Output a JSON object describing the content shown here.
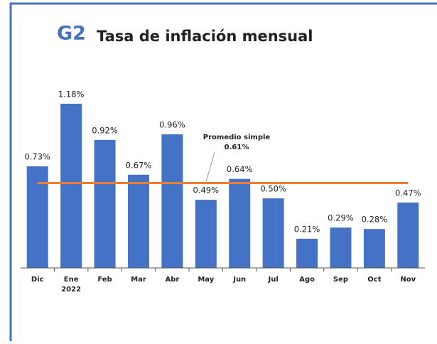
{
  "chart_data": {
    "type": "bar",
    "badge": "G2",
    "title": "Tasa de inflación mensual",
    "categories": [
      "Dic",
      "Ene 2022",
      "Feb",
      "Mar",
      "Abr",
      "May",
      "Jun",
      "Jul",
      "Ago",
      "Sep",
      "Oct",
      "Nov"
    ],
    "values": [
      0.73,
      1.18,
      0.92,
      0.67,
      0.96,
      0.49,
      0.64,
      0.5,
      0.21,
      0.29,
      0.28,
      0.47
    ],
    "value_labels": [
      "0.73%",
      "1.18%",
      "0.92%",
      "0.67%",
      "0.96%",
      "0.49%",
      "0.64%",
      "0.50%",
      "0.21%",
      "0.29%",
      "0.28%",
      "0.47%"
    ],
    "color": "#4472c4",
    "ylim": [
      0,
      1.2
    ],
    "reference_line": {
      "value": 0.61,
      "label": "Promedio simple",
      "value_label": "0.61%",
      "color": "#ed7d31"
    }
  }
}
